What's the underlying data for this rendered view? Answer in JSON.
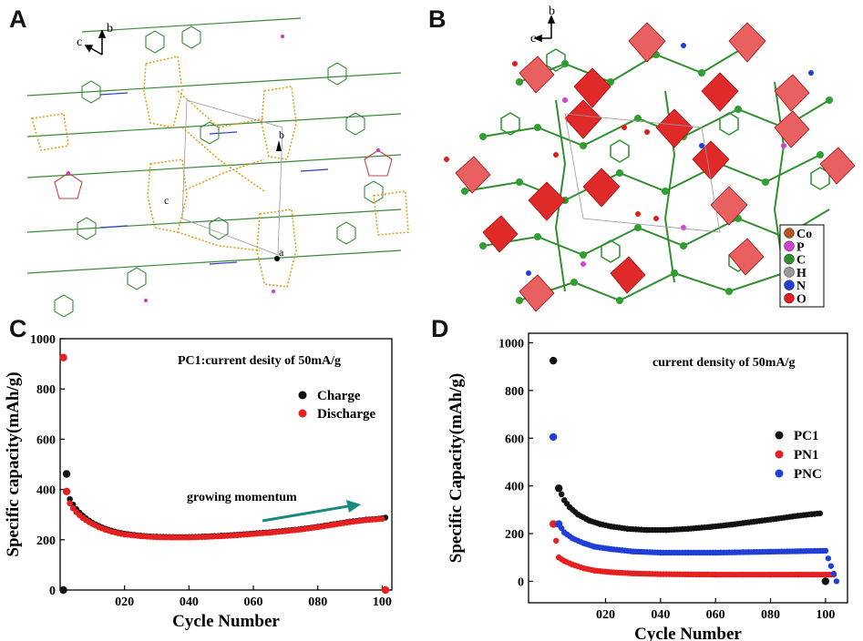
{
  "panels": {
    "A": {
      "label": "A",
      "axes": {
        "b": "b",
        "c": "c"
      },
      "cell_labels": {
        "b": "b",
        "c": "c",
        "a": "a"
      }
    },
    "B": {
      "label": "B",
      "axes": {
        "b": "b",
        "c": "c"
      },
      "legend": [
        {
          "symbol": "Co",
          "color": "#b5541c"
        },
        {
          "symbol": "P",
          "color": "#d63fd6"
        },
        {
          "symbol": "C",
          "color": "#2f8f2f"
        },
        {
          "symbol": "H",
          "color": "#9a9a9a"
        },
        {
          "symbol": "N",
          "color": "#1f3fd6"
        },
        {
          "symbol": "O",
          "color": "#e01c1c"
        }
      ]
    },
    "C": {
      "label": "C"
    },
    "D": {
      "label": "D"
    }
  },
  "chart_data": [
    {
      "type": "scatter",
      "panel": "C",
      "annotation": "PC1:current desity of 50mA/g",
      "arrow_text": "growing momentum",
      "xlabel": "Cycle Number",
      "ylabel": "Specific capacity(mAh/g)",
      "xlim": [
        0,
        103
      ],
      "ylim": [
        0,
        1000
      ],
      "x_ticks": [
        "020",
        "040",
        "060",
        "080",
        "100"
      ],
      "y_ticks": [
        "0",
        "200",
        "400",
        "600",
        "800",
        "1000"
      ],
      "series": [
        {
          "name": "Charge",
          "color": "#111111",
          "points": [
            [
              1,
              0
            ],
            [
              2,
              462
            ],
            [
              3,
              362
            ],
            [
              4,
              340
            ],
            [
              5,
              322
            ],
            [
              6,
              308
            ],
            [
              7,
              296
            ],
            [
              8,
              285
            ],
            [
              9,
              276
            ],
            [
              10,
              268
            ],
            [
              12,
              255
            ],
            [
              14,
              244
            ],
            [
              16,
              236
            ],
            [
              18,
              229
            ],
            [
              20,
              224
            ],
            [
              25,
              216
            ],
            [
              30,
              212
            ],
            [
              35,
              211
            ],
            [
              40,
              211
            ],
            [
              45,
              213
            ],
            [
              50,
              216
            ],
            [
              55,
              220
            ],
            [
              60,
              225
            ],
            [
              65,
              230
            ],
            [
              70,
              236
            ],
            [
              75,
              243
            ],
            [
              80,
              252
            ],
            [
              85,
              262
            ],
            [
              90,
              272
            ],
            [
              95,
              280
            ],
            [
              100,
              285
            ],
            [
              101,
              288
            ]
          ]
        },
        {
          "name": "Discharge",
          "color": "#e52020",
          "points": [
            [
              1,
              925
            ],
            [
              2,
              392
            ],
            [
              3,
              345
            ],
            [
              4,
              325
            ],
            [
              5,
              310
            ],
            [
              6,
              298
            ],
            [
              7,
              287
            ],
            [
              8,
              278
            ],
            [
              9,
              270
            ],
            [
              10,
              263
            ],
            [
              12,
              250
            ],
            [
              14,
              240
            ],
            [
              16,
              232
            ],
            [
              18,
              226
            ],
            [
              20,
              221
            ],
            [
              25,
              214
            ],
            [
              30,
              210
            ],
            [
              35,
              209
            ],
            [
              40,
              209
            ],
            [
              45,
              211
            ],
            [
              50,
              214
            ],
            [
              55,
              218
            ],
            [
              60,
              223
            ],
            [
              65,
              228
            ],
            [
              70,
              234
            ],
            [
              75,
              241
            ],
            [
              80,
              250
            ],
            [
              85,
              260
            ],
            [
              90,
              270
            ],
            [
              95,
              278
            ],
            [
              100,
              283
            ],
            [
              101,
              0
            ]
          ]
        }
      ],
      "legend_position": "top-right"
    },
    {
      "type": "scatter",
      "panel": "D",
      "annotation": "current density of 50mA/g",
      "xlabel": "Cycle Number",
      "ylabel": "Specific Capacity(mAh/g)",
      "xlim": [
        -8,
        108
      ],
      "ylim": [
        -90,
        1040
      ],
      "x_ticks": [
        "020",
        "040",
        "060",
        "080",
        "100"
      ],
      "y_ticks": [
        "0",
        "200",
        "400",
        "600",
        "800",
        "1000"
      ],
      "series": [
        {
          "name": "PC1",
          "color": "#111111",
          "points": [
            [
              1,
              925
            ],
            [
              3,
              390
            ],
            [
              5,
              340
            ],
            [
              7,
              310
            ],
            [
              10,
              280
            ],
            [
              14,
              255
            ],
            [
              18,
              240
            ],
            [
              22,
              230
            ],
            [
              28,
              220
            ],
            [
              35,
              215
            ],
            [
              42,
              215
            ],
            [
              50,
              220
            ],
            [
              58,
              228
            ],
            [
              66,
              238
            ],
            [
              74,
              250
            ],
            [
              82,
              262
            ],
            [
              90,
              275
            ],
            [
              98,
              285
            ],
            [
              100,
              0
            ]
          ]
        },
        {
          "name": "PN1",
          "color": "#e52020",
          "points": [
            [
              1,
              240
            ],
            [
              3,
              100
            ],
            [
              5,
              85
            ],
            [
              8,
              70
            ],
            [
              12,
              55
            ],
            [
              16,
              45
            ],
            [
              22,
              38
            ],
            [
              30,
              33
            ],
            [
              40,
              30
            ],
            [
              50,
              29
            ],
            [
              60,
              28
            ],
            [
              70,
              28
            ],
            [
              80,
              28
            ],
            [
              90,
              28
            ],
            [
              100,
              28
            ],
            [
              103,
              28
            ]
          ]
        },
        {
          "name": "PNC",
          "color": "#1f3fd6",
          "points": [
            [
              1,
              605
            ],
            [
              3,
              240
            ],
            [
              5,
              205
            ],
            [
              8,
              180
            ],
            [
              12,
              160
            ],
            [
              16,
              145
            ],
            [
              22,
              135
            ],
            [
              30,
              125
            ],
            [
              40,
              120
            ],
            [
              50,
              120
            ],
            [
              60,
              120
            ],
            [
              70,
              122
            ],
            [
              80,
              124
            ],
            [
              90,
              126
            ],
            [
              100,
              128
            ],
            [
              104,
              0
            ]
          ]
        }
      ],
      "legend_position": "right"
    }
  ]
}
